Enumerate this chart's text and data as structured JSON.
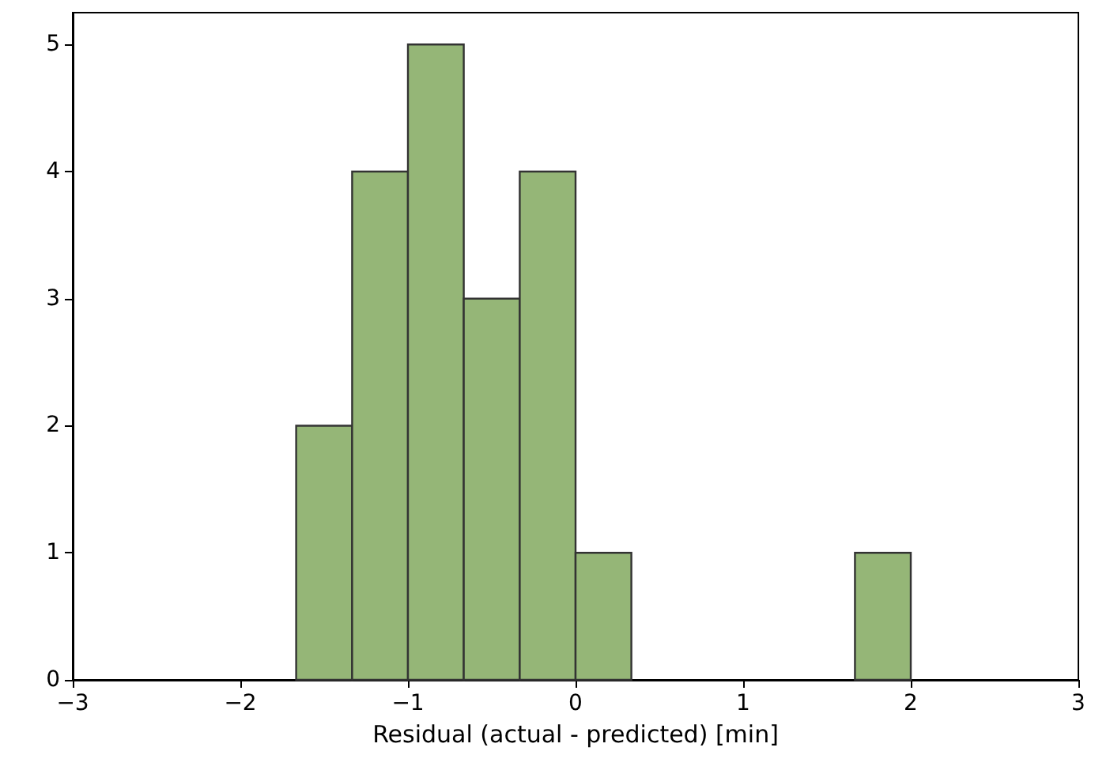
{
  "chart_data": {
    "type": "histogram",
    "xlabel": "Residual (actual - predicted) [min]",
    "bins": [
      -1.667,
      -1.333,
      -1,
      -0.667,
      -0.333,
      0,
      0.333,
      0.667,
      1,
      1.333,
      1.667,
      2
    ],
    "values": [
      2,
      4,
      5,
      3,
      4,
      1,
      0,
      0,
      0,
      0,
      1
    ],
    "color": "#95b677",
    "xlim": [
      -3,
      3
    ],
    "xticks": [
      {
        "value": -3,
        "label": "−3"
      },
      {
        "value": -2,
        "label": "−2"
      },
      {
        "value": -1,
        "label": "−1"
      },
      0,
      1,
      2,
      3
    ],
    "ylim": [
      0,
      5.25
    ],
    "yticks": [
      0,
      1,
      2,
      3,
      4,
      5
    ],
    "grid": false
  }
}
